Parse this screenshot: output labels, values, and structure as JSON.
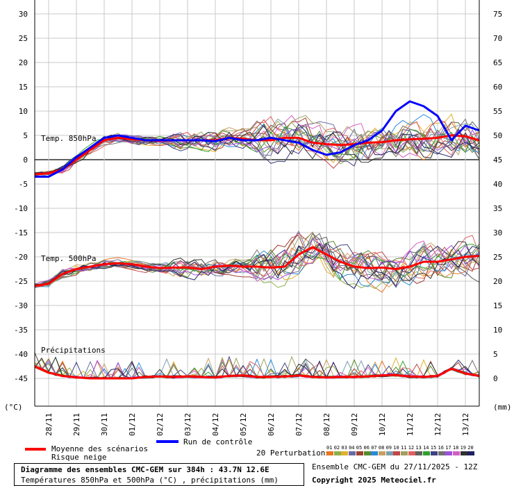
{
  "chart_data": {
    "type": "line",
    "left_axis_label": "(°C)",
    "right_axis_label": "(mm)",
    "left_ticks": [
      30,
      25,
      20,
      15,
      10,
      5,
      0,
      -5,
      -10,
      -15,
      -20,
      -25,
      -30,
      -35,
      -40,
      -45
    ],
    "right_ticks": [
      75,
      70,
      65,
      60,
      55,
      50,
      45,
      40,
      35,
      30,
      25,
      20,
      15,
      10,
      5,
      0
    ],
    "ylim_left": [
      -45,
      30
    ],
    "ylim_right": [
      0,
      75
    ],
    "x_ticks": [
      "28/11",
      "29/11",
      "30/11",
      "01/12",
      "02/12",
      "03/12",
      "04/12",
      "05/12",
      "06/12",
      "07/12",
      "08/12",
      "09/12",
      "10/12",
      "11/12",
      "12/12",
      "13/12"
    ],
    "panel_labels": [
      "Temp. 850hPa",
      "Temp. 500hPa",
      "Précipitations"
    ],
    "series": [
      {
        "name": "Moyenne des scénarios",
        "panel": "850hPa",
        "x": [
          0,
          0.5,
          1,
          1.5,
          2,
          2.5,
          3,
          3.5,
          4,
          4.5,
          5,
          5.5,
          6,
          6.5,
          7,
          7.5,
          8,
          8.5,
          9,
          9.5,
          10,
          10.5,
          11,
          11.5,
          12,
          12.5,
          13,
          13.5,
          14,
          14.5,
          15,
          15.5,
          16
        ],
        "values": [
          -3,
          -2.8,
          -2,
          0,
          2,
          4,
          4.5,
          4.2,
          4,
          3.9,
          4,
          4,
          4,
          4,
          4.5,
          4.3,
          4,
          4,
          4.5,
          4.5,
          3.5,
          3.2,
          3,
          3.2,
          3.5,
          3.6,
          4,
          4.2,
          4.3,
          4.5,
          5,
          4.8,
          4
        ]
      },
      {
        "name": "Run de contrôle",
        "panel": "850hPa",
        "x": [
          0,
          0.5,
          1,
          1.5,
          2,
          2.5,
          3,
          3.5,
          4,
          4.5,
          5,
          5.5,
          6,
          6.5,
          7,
          7.5,
          8,
          8.5,
          9,
          9.5,
          10,
          10.5,
          11,
          11.5,
          12,
          12.5,
          13,
          13.5,
          14,
          14.5,
          15,
          15.5,
          16
        ],
        "values": [
          -3.5,
          -3.5,
          -2,
          0.5,
          2.5,
          4.5,
          5,
          4.5,
          4,
          4,
          4,
          4,
          4,
          3.8,
          4.5,
          4,
          4,
          4.5,
          4,
          3.5,
          2,
          1,
          1.5,
          3,
          4,
          6,
          10,
          12,
          11,
          9,
          4,
          7,
          6
        ]
      },
      {
        "name": "Moyenne des scénarios",
        "panel": "500hPa",
        "x": [
          0,
          0.5,
          1,
          1.5,
          2,
          2.5,
          3,
          3.5,
          4,
          4.5,
          5,
          5.5,
          6,
          6.5,
          7,
          7.5,
          8,
          8.5,
          9,
          9.5,
          10,
          10.5,
          11,
          11.5,
          12,
          12.5,
          13,
          13.5,
          14,
          14.5,
          15,
          15.5,
          16
        ],
        "values": [
          -26,
          -25.5,
          -23.5,
          -22.5,
          -22,
          -21.5,
          -21.3,
          -21.5,
          -22,
          -22.3,
          -22.2,
          -22.2,
          -22.5,
          -22,
          -21.8,
          -22,
          -22,
          -22.2,
          -22,
          -19.5,
          -18,
          -19.5,
          -21,
          -22,
          -22.3,
          -22.2,
          -22.5,
          -22,
          -21,
          -21,
          -20.5,
          -20,
          -19.8
        ]
      },
      {
        "name": "Moyenne des scénarios",
        "panel": "Précipitations",
        "x": [
          0,
          0.5,
          1,
          1.5,
          2,
          2.5,
          3,
          3.5,
          4,
          4.5,
          5,
          5.5,
          6,
          6.5,
          7,
          7.5,
          8,
          8.5,
          9,
          9.5,
          10,
          10.5,
          11,
          11.5,
          12,
          12.5,
          13,
          13.5,
          14,
          14.5,
          15,
          15.5,
          16
        ],
        "values": [
          2.5,
          1.2,
          0.5,
          0.2,
          0,
          0,
          0,
          0,
          0.3,
          0.4,
          0.3,
          0.4,
          0.3,
          0.2,
          0.5,
          0.6,
          0.3,
          0.3,
          0.4,
          0.6,
          0.3,
          0.2,
          0.3,
          0.3,
          0.4,
          0.6,
          0.7,
          0.4,
          0.3,
          0.5,
          2,
          1,
          0.5
        ]
      }
    ]
  },
  "legend": {
    "mean_label": "Moyenne des scénarios",
    "snow_label": "Risque neige",
    "control_label": "Run de contrôle",
    "perturb_label": "20 Perturbations",
    "perturb_numbers": [
      "01",
      "02",
      "03",
      "04",
      "05",
      "06",
      "07",
      "08",
      "09",
      "10",
      "11",
      "12",
      "13",
      "14",
      "15",
      "16",
      "17",
      "18",
      "19",
      "20"
    ],
    "perturb_colors": [
      "#e87722",
      "#8db04a",
      "#e0b030",
      "#6a6aa8",
      "#a04030",
      "#5a8a2a",
      "#2a8ad8",
      "#c8a060",
      "#7aa0b0",
      "#c04848",
      "#a0a060",
      "#e06060",
      "#606060",
      "#30a030",
      "#404080",
      "#707070",
      "#a050e0",
      "#d060c0",
      "#303030",
      "#202060"
    ],
    "colors": {
      "mean": "#ff0000",
      "control": "#0000ff"
    }
  },
  "info": {
    "title": "Diagramme des ensembles CMC-GEM sur 384h : 43.7N 12.6E",
    "subtitle": "Températures 850hPa et 500hPa (°C) , précipitations (mm)",
    "run": "Ensemble CMC-GEM du 27/11/2025 - 12Z",
    "copyright": "Copyright 2025 Meteociel.fr"
  }
}
